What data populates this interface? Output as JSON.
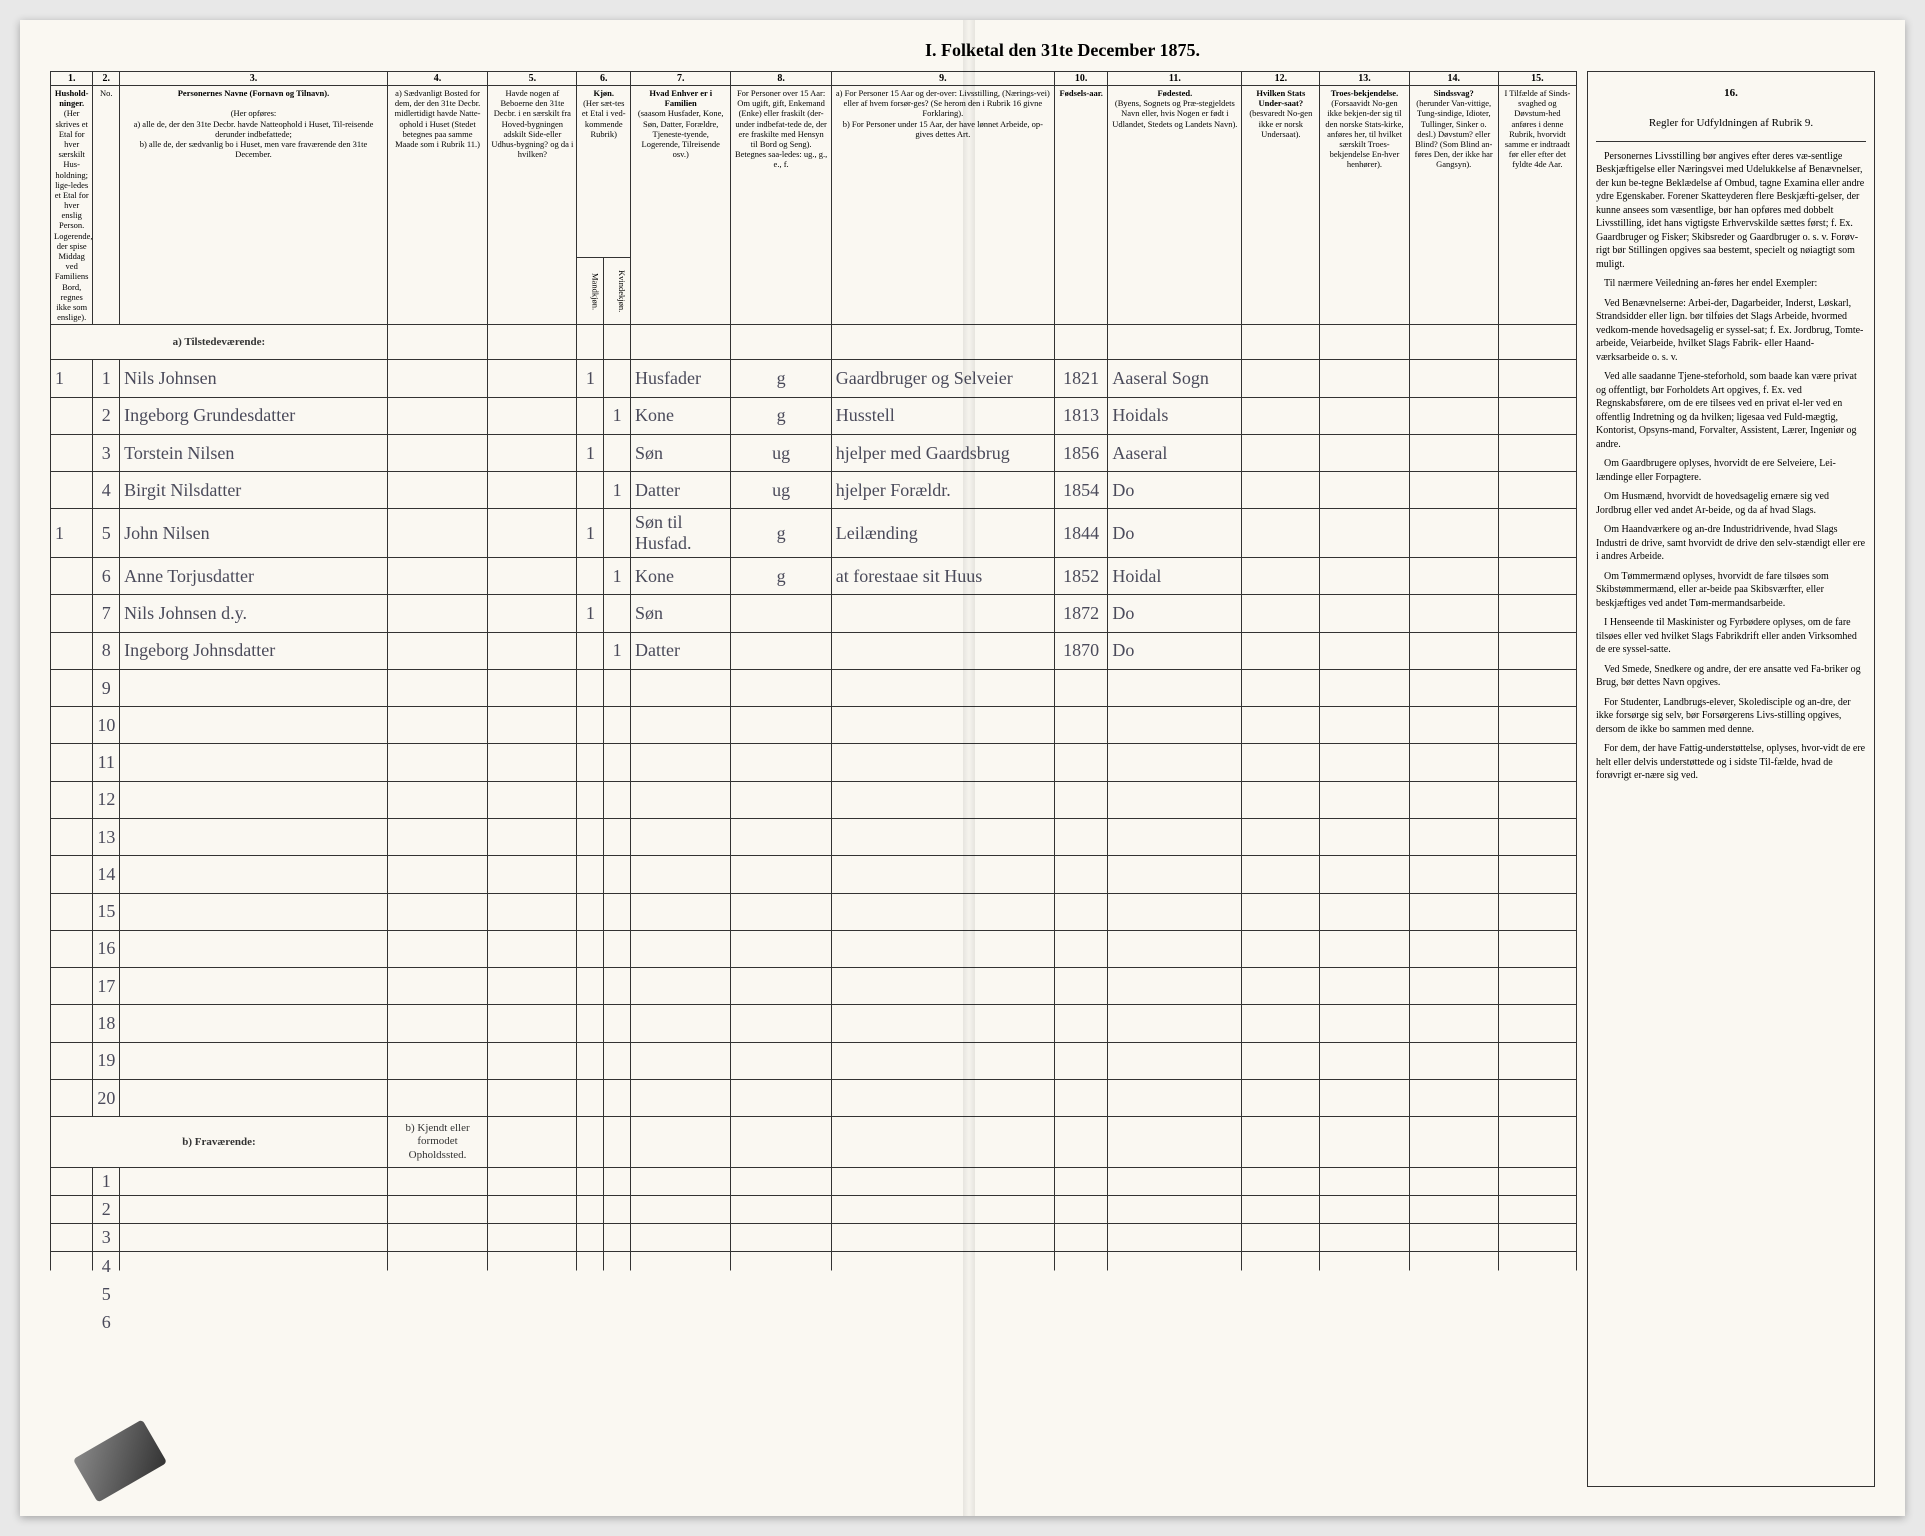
{
  "title": "I. Folketal den 31te December 1875.",
  "columns": {
    "numbers": [
      "1.",
      "2.",
      "3.",
      "4.",
      "5.",
      "6.",
      "7.",
      "8.",
      "9.",
      "10.",
      "11.",
      "12.",
      "13.",
      "14.",
      "15.",
      "16."
    ],
    "h1": "Hushold-ninger.",
    "h1b": "(Her skrives et Etal for hver særskilt Hus-holdning; lige-ledes et Etal for hver enslig Person. Logerende, der spise Middag ved Familiens Bord, regnes ikke som enslige).",
    "h2": "No.",
    "h3": "Personernes Navne (Fornavn og Tilnavn).",
    "h3b": "(Her opføres:\na) alle de, der den 31te Decbr. havde Natteophold i Huset, Til-reisende derunder indbefattede;\nb) alle de, der sædvanlig bo i Huset, men vare fraværende den 31te December.",
    "h4": "a) Sædvanligt Bosted for dem, der den 31te Decbr. midlertidigt havde Natte-ophold i Huset (Stedet betegnes paa samme Maade som i Rubrik 11.)",
    "h5": "Havde nogen af Beboerne den 31te Decbr. i en særskilt fra Hoved-bygningen adskilt Side-eller Udhus-bygning? og da i hvilken?",
    "h6": "Kjøn.",
    "h6a": "Mandkjøn.",
    "h6b": "Kvindekjøn.",
    "h6c": "(Her sæt-tes et Etal i ved-kommende Rubrik)",
    "h7": "Hvad Enhver er i Familien",
    "h7b": "(saasom Husfader, Kone, Søn, Datter, Forældre, Tjeneste-tyende, Logerende, Tilreisende osv.)",
    "h8": "For Personer over 15 Aar: Om ugift, gift, Enkemand (Enke) eller fraskilt (der-under indbefat-tede de, der ere fraskilte med Hensyn til Bord og Seng). Betegnes saa-ledes: ug., g., e., f.",
    "h9": "a) For Personer 15 Aar og der-over: Livsstilling, (Nærings-vei) eller af hvem forsør-ges? (Se herom den i Rubrik 16 givne Forklaring).\nb) For Personer under 15 Aar, der have lønnet Arbeide, op-gives dettes Art.",
    "h10": "Fødsels-aar.",
    "h11": "Fødested.",
    "h11b": "(Byens, Sognets og Præ-stegjeldets Navn eller, hvis Nogen er født i Udlandet, Stedets og Landets Navn).",
    "h12": "Hvilken Stats Under-saat?",
    "h12b": "(besvaredt No-gen ikke er norsk Undersaat).",
    "h13": "Troes-bekjendelse.",
    "h13b": "(Forsaavidt No-gen ikke bekjen-der sig til den norske Stats-kirke, anføres her, til hvilket særskilt Troes-bekjendelse En-hver henhører).",
    "h14": "Sindssvag?",
    "h14b": "(herunder Van-vittige, Tung-sindige, Idioter, Tullinger, Sinker o. desl.) Døvstum? eller Blind? (Som Blind an-føres Den, der ikke har Gangsyn).",
    "h15": "I Tilfælde af Sinds-svaghed og Døvstum-hed anføres i denne Rubrik, hvorvidt samme er indtraadt før eller efter det fyldte 4de Aar.",
    "h16": "Regler for Udfyldningen af Rubrik 9."
  },
  "section_a": "a) Tilstedeværende:",
  "section_b": "b) Fraværende:",
  "section_b_col4": "b) Kjendt eller formodet Opholdssted.",
  "rows": [
    {
      "hh": "1",
      "n": "1",
      "name": "Nils Johnsen",
      "c4": "",
      "c5": "",
      "c6a": "1",
      "c6b": "",
      "fam": "Husfader",
      "ms": "g",
      "occ": "Gaardbruger og Selveier",
      "year": "1821",
      "place": "Aaseral Sogn"
    },
    {
      "hh": "",
      "n": "2",
      "name": "Ingeborg Grundesdatter",
      "c4": "",
      "c5": "",
      "c6a": "",
      "c6b": "1",
      "fam": "Kone",
      "ms": "g",
      "occ": "Husstell",
      "year": "1813",
      "place": "Hoidals"
    },
    {
      "hh": "",
      "n": "3",
      "name": "Torstein Nilsen",
      "c4": "",
      "c5": "",
      "c6a": "1",
      "c6b": "",
      "fam": "Søn",
      "ms": "ug",
      "occ": "hjelper med Gaardsbrug",
      "year": "1856",
      "place": "Aaseral"
    },
    {
      "hh": "",
      "n": "4",
      "name": "Birgit Nilsdatter",
      "c4": "",
      "c5": "",
      "c6a": "",
      "c6b": "1",
      "fam": "Datter",
      "ms": "ug",
      "occ": "hjelper Forældr.",
      "year": "1854",
      "place": "Do"
    },
    {
      "hh": "1",
      "n": "5",
      "name": "John Nilsen",
      "c4": "",
      "c5": "",
      "c6a": "1",
      "c6b": "",
      "fam": "Søn til Husfad.",
      "ms": "g",
      "occ": "Leilænding",
      "year": "1844",
      "place": "Do"
    },
    {
      "hh": "",
      "n": "6",
      "name": "Anne Torjusdatter",
      "c4": "",
      "c5": "",
      "c6a": "",
      "c6b": "1",
      "fam": "Kone",
      "ms": "g",
      "occ": "at forestaae sit Huus",
      "year": "1852",
      "place": "Hoidal"
    },
    {
      "hh": "",
      "n": "7",
      "name": "Nils Johnsen d.y.",
      "c4": "",
      "c5": "",
      "c6a": "1",
      "c6b": "",
      "fam": "Søn",
      "ms": "",
      "occ": "",
      "year": "1872",
      "place": "Do"
    },
    {
      "hh": "",
      "n": "8",
      "name": "Ingeborg Johnsdatter",
      "c4": "",
      "c5": "",
      "c6a": "",
      "c6b": "1",
      "fam": "Datter",
      "ms": "",
      "occ": "",
      "year": "1870",
      "place": "Do"
    }
  ],
  "empty_a": [
    "9",
    "10",
    "11",
    "12",
    "13",
    "14",
    "15",
    "16",
    "17",
    "18",
    "19",
    "20"
  ],
  "empty_b": [
    "1",
    "2",
    "3",
    "4",
    "5",
    "6"
  ],
  "rules": [
    "Personernes Livsstilling bør angives efter deres væ-sentlige Beskjæftigelse eller Næringsvei med Udelukkelse af Benævnelser, der kun be-tegne Beklædelse af Ombud, tagne Examina eller andre ydre Egenskaber. Forener Skatteyderen flere Beskjæfti-gelser, der kunne ansees som væsentlige, bør han opføres med dobbelt Livsstilling, idet hans vigtigste Erhvervskilde sættes først; f. Ex. Gaardbruger og Fisker; Skibsreder og Gaardbruger o. s. v. Forøv-rigt bør Stillingen opgives saa bestemt, specielt og nøiagtigt som muligt.",
    "Til nærmere Veiledning an-føres her endel Exempler:",
    "Ved Benævnelserne: Arbei-der, Dagarbeider, Inderst, Løskarl, Strandsidder eller lign. bør tilføies det Slags Arbeide, hvormed vedkom-mende hovedsagelig er syssel-sat; f. Ex. Jordbrug, Tomte-arbeide, Veiarbeide, hvilket Slags Fabrik- eller Haand-værksarbeide o. s. v.",
    "Ved alle saadanne Tjene-steforhold, som baade kan være privat og offentligt, bør Forholdets Art opgives, f. Ex. ved Regnskabsførere, om de ere tilsees ved en privat el-ler ved en offentlig Indretning og da hvilken; ligesaa ved Fuld-mægtig, Kontorist, Opsyns-mand, Forvalter, Assistent, Lærer, Ingeniør og andre.",
    "Om Gaardbrugere oplyses, hvorvidt de ere Selveiere, Lei-lændinge eller Forpagtere.",
    "Om Husmænd, hvorvidt de hovedsagelig ernære sig ved Jordbrug eller ved andet Ar-beide, og da af hvad Slags.",
    "Om Haandværkere og an-dre Industridrivende, hvad Slags Industri de drive, samt hvorvidt de drive den selv-stændigt eller ere i andres Arbeide.",
    "Om Tømmermænd oplyses, hvorvidt de fare tilsøes som Skibstømmermænd, eller ar-beide paa Skibsværfter, eller beskjæftiges ved andet Tøm-mermandsarbeide.",
    "I Henseende til Maskinister og Fyrbødere oplyses, om de fare tilsøes eller ved hvilket Slags Fabrikdrift eller anden Virksomhed de ere syssel-satte.",
    "Ved Smede, Snedkere og andre, der ere ansatte ved Fa-briker og Brug, bør dettes Navn opgives.",
    "For Studenter, Landbrugs-elever, Skoledisciple og an-dre, der ikke forsørge sig selv, bør Forsørgerens Livs-stilling opgives, dersom de ikke bo sammen med denne.",
    "For dem, der have Fattig-understøttelse, oplyses, hvor-vidt de ere helt eller delvis understøttede og i sidste Til-fælde, hvad de forøvrigt er-nære sig ved."
  ],
  "colors": {
    "paper": "#faf8f2",
    "ink": "#333333",
    "handwriting": "#4a4a5a"
  }
}
